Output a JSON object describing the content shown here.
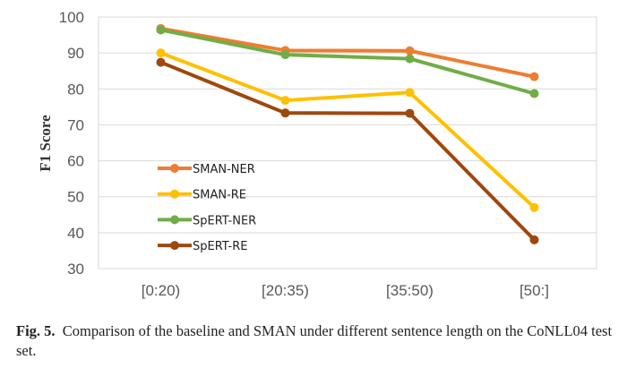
{
  "chart_data": {
    "type": "line",
    "categories": [
      "[0:20)",
      "[20:35)",
      "[35:50)",
      "[50:]"
    ],
    "ylabel": "F1 Score",
    "ylim": [
      30,
      100
    ],
    "yticks": [
      30,
      40,
      50,
      60,
      70,
      80,
      90,
      100
    ],
    "grid": true,
    "legend_position": "inside-lower-left",
    "series": [
      {
        "name": "SMAN-NER",
        "color": "#ED7D31",
        "values": [
          96.8,
          90.7,
          90.6,
          83.4
        ]
      },
      {
        "name": "SMAN-RE",
        "color": "#FFC000",
        "values": [
          90.0,
          76.8,
          79.0,
          47.0
        ]
      },
      {
        "name": "SpERT-NER",
        "color": "#70AD47",
        "values": [
          96.4,
          89.5,
          88.4,
          78.7
        ]
      },
      {
        "name": "SpERT-RE",
        "color": "#9E480E",
        "values": [
          87.4,
          73.3,
          73.2,
          38.0
        ]
      }
    ]
  },
  "caption": {
    "label": "Fig. 5.",
    "text": "Comparison of the baseline and SMAN under different sentence length on the CoNLL04 test set."
  }
}
